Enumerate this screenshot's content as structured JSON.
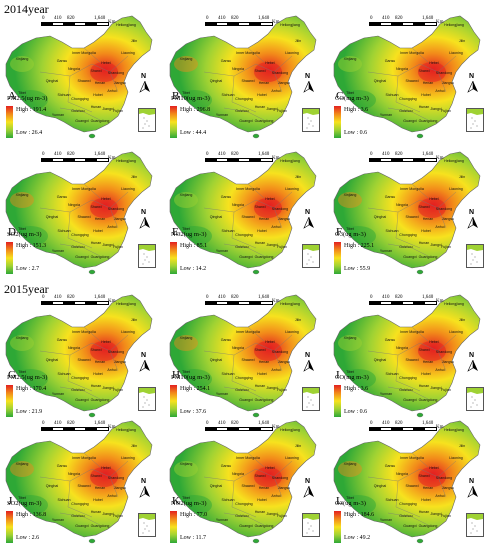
{
  "years": [
    "2014year",
    "2015year"
  ],
  "scale_bar": {
    "ticks": [
      "0",
      "410",
      "820",
      "1,640"
    ],
    "unit": "Km"
  },
  "north_arrow": "N",
  "legend_high_prefix": "High :",
  "legend_low_prefix": "Low :",
  "panels": [
    {
      "letter": "A",
      "year": "2014year",
      "pollutant_label": "PM2.5(ug m-3)",
      "high": "191.4",
      "low": "26.4",
      "color_ramp": [
        "#2ea836",
        "#9fd233",
        "#f7e21e",
        "#f28a1a",
        "#e32020"
      ]
    },
    {
      "letter": "B",
      "year": "2014year",
      "pollutant_label": "PM10(ug m-3)",
      "high": "296.8",
      "low": "44.4",
      "color_ramp": [
        "#2ea836",
        "#9fd233",
        "#f7e21e",
        "#f28a1a",
        "#e32020"
      ]
    },
    {
      "letter": "C",
      "year": "2014year",
      "pollutant_label": "CO(mg m-3)",
      "high": "3.6",
      "low": "0.6",
      "color_ramp": [
        "#2ea836",
        "#9fd233",
        "#f7e21e",
        "#f28a1a",
        "#e32020"
      ]
    },
    {
      "letter": "D",
      "year": "2014year",
      "pollutant_label": "SO2(ug m-3)",
      "high": "151.3",
      "low": "2.7",
      "color_ramp": [
        "#2ea836",
        "#9fd233",
        "#f7e21e",
        "#f28a1a",
        "#e32020"
      ]
    },
    {
      "letter": "E",
      "year": "2014year",
      "pollutant_label": "NO2(ug m-3)",
      "high": "85.1",
      "low": "14.2",
      "color_ramp": [
        "#2ea836",
        "#9fd233",
        "#f7e21e",
        "#f28a1a",
        "#e32020"
      ]
    },
    {
      "letter": "F",
      "year": "2014year",
      "pollutant_label": "O3(ug m-3)",
      "high": "225.1",
      "low": "55.9",
      "color_ramp": [
        "#2ea836",
        "#9fd233",
        "#f7e21e",
        "#f28a1a",
        "#e32020"
      ]
    },
    {
      "letter": "G",
      "year": "2015year",
      "pollutant_label": "PM2.5(ug m-3)",
      "high": "170.4",
      "low": "21.9",
      "color_ramp": [
        "#2ea836",
        "#9fd233",
        "#f7e21e",
        "#f28a1a",
        "#e32020"
      ]
    },
    {
      "letter": "H",
      "year": "2015year",
      "pollutant_label": "PM10(ug m-3)",
      "high": "254.1",
      "low": "37.6",
      "color_ramp": [
        "#2ea836",
        "#9fd233",
        "#f7e21e",
        "#f28a1a",
        "#e32020"
      ]
    },
    {
      "letter": "I",
      "year": "2015year",
      "pollutant_label": "CO(mg m-3)",
      "high": "3.6",
      "low": "0.6",
      "color_ramp": [
        "#2ea836",
        "#9fd233",
        "#f7e21e",
        "#f28a1a",
        "#e32020"
      ]
    },
    {
      "letter": "J",
      "year": "2015year",
      "pollutant_label": "SO2(ug m-3)",
      "high": "136.8",
      "low": "2.6",
      "color_ramp": [
        "#2ea836",
        "#9fd233",
        "#f7e21e",
        "#f28a1a",
        "#e32020"
      ]
    },
    {
      "letter": "K",
      "year": "2015year",
      "pollutant_label": "NO2(ug m-3)",
      "high": "77.0",
      "low": "11.7",
      "color_ramp": [
        "#2ea836",
        "#9fd233",
        "#f7e21e",
        "#f28a1a",
        "#e32020"
      ]
    },
    {
      "letter": "L",
      "year": "2015year",
      "pollutant_label": "O3(ug m-3)",
      "high": "184.6",
      "low": "49.2",
      "color_ramp": [
        "#2ea836",
        "#9fd233",
        "#f7e21e",
        "#f28a1a",
        "#e32020"
      ]
    }
  ],
  "province_labels": [
    "Xinjiang",
    "Tibet",
    "Qinghai",
    "Gansu",
    "Inner Mongolia",
    "Heilongjiang",
    "Jilin",
    "Liaoning",
    "Hebei",
    "Shanxi",
    "Shaanxi",
    "Ningxia",
    "Henan",
    "Shandong",
    "Sichuan",
    "Chongqing",
    "Hubei",
    "Anhui",
    "Jiangsu",
    "Hunan",
    "Jiangxi",
    "Guizhou",
    "Yunnan",
    "Guangxi",
    "Guangdong",
    "Fujian"
  ]
}
